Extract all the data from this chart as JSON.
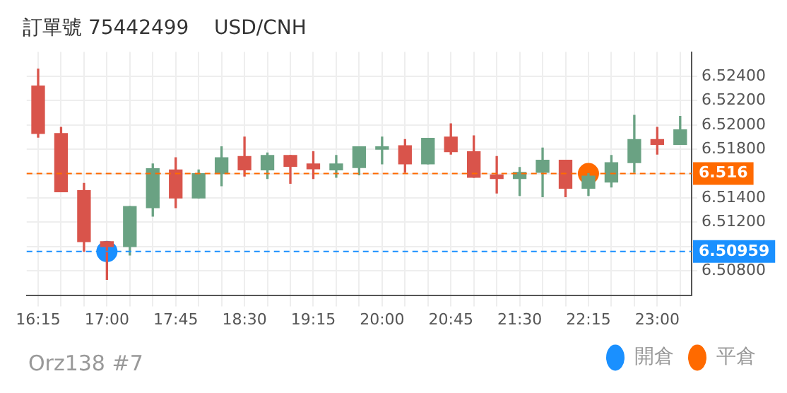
{
  "chart_data": {
    "type": "candlestick",
    "title": "訂單號 75442499    USD/CNH",
    "categories": [
      "16:15",
      null,
      null,
      "17:00",
      null,
      null,
      "17:45",
      null,
      null,
      "18:30",
      null,
      null,
      "19:15",
      null,
      null,
      "20:00",
      null,
      null,
      "20:45",
      null,
      null,
      "21:30",
      null,
      null,
      "22:15",
      null,
      null,
      "23:00",
      null
    ],
    "ohlc": [
      [
        6.5232,
        6.5246,
        6.519,
        6.5193
      ],
      [
        6.5193,
        6.5198,
        6.5145,
        6.5145
      ],
      [
        6.5146,
        6.5152,
        6.5096,
        6.5104
      ],
      [
        6.5104,
        6.5104,
        6.5073,
        6.51
      ],
      [
        6.51,
        6.5133,
        6.5093,
        6.5133
      ],
      [
        6.5132,
        6.5168,
        6.5125,
        6.5164
      ],
      [
        6.5163,
        6.5173,
        6.5132,
        6.514
      ],
      [
        6.514,
        6.5163,
        6.514,
        6.516
      ],
      [
        6.516,
        6.5182,
        6.515,
        6.5173
      ],
      [
        6.5174,
        6.519,
        6.5158,
        6.5163
      ],
      [
        6.5163,
        6.5177,
        6.5156,
        6.5175
      ],
      [
        6.5175,
        6.5175,
        6.5152,
        6.5166
      ],
      [
        6.5168,
        6.5178,
        6.5156,
        6.5164
      ],
      [
        6.5163,
        6.5175,
        6.5157,
        6.5168
      ],
      [
        6.5165,
        6.5182,
        6.5159,
        6.5182
      ],
      [
        6.518,
        6.519,
        6.5168,
        6.5182
      ],
      [
        6.5183,
        6.5188,
        6.5161,
        6.5168
      ],
      [
        6.5168,
        6.5189,
        6.5168,
        6.5189
      ],
      [
        6.519,
        6.5201,
        6.5176,
        6.5178
      ],
      [
        6.5178,
        6.5191,
        6.5157,
        6.5157
      ],
      [
        6.5159,
        6.5174,
        6.5144,
        6.5156
      ],
      [
        6.5156,
        6.5165,
        6.5142,
        6.5161
      ],
      [
        6.5161,
        6.5181,
        6.5141,
        6.5171
      ],
      [
        6.5171,
        6.5171,
        6.5141,
        6.5148
      ],
      [
        6.5148,
        6.516,
        6.5142,
        6.5158
      ],
      [
        6.5153,
        6.5175,
        6.5149,
        6.5169
      ],
      [
        6.5169,
        6.5208,
        6.5161,
        6.5188
      ],
      [
        6.5188,
        6.5198,
        6.5176,
        6.5184
      ],
      [
        6.5184,
        6.5207,
        6.5184,
        6.5196
      ]
    ],
    "colors": [
      "#d9544b",
      "#d9544b",
      "#d9544b",
      "#d9544b",
      "#6aa283",
      "#6aa283",
      "#d9544b",
      "#6aa283",
      "#6aa283",
      "#d9544b",
      "#6aa283",
      "#d9544b",
      "#d9544b",
      "#6aa283",
      "#6aa283",
      "#6aa283",
      "#d9544b",
      "#6aa283",
      "#d9544b",
      "#d9544b",
      "#d9544b",
      "#6aa283",
      "#6aa283",
      "#d9544b",
      "#6aa283",
      "#6aa283",
      "#6aa283",
      "#d9544b",
      "#6aa283"
    ],
    "series": [
      {
        "type": "scatter",
        "name": "開倉",
        "color": "#1a90ff",
        "x": [
          "17:00"
        ],
        "values": [
          6.50959
        ]
      },
      {
        "type": "scatter",
        "name": "平倉",
        "color": "#ff6a00",
        "x": [
          "22:15"
        ],
        "values": [
          6.516
        ]
      }
    ],
    "marker": "circle",
    "ylim": [
      6.506,
      6.526
    ],
    "yticks": [
      {
        "value": 6.508,
        "label": "6.50800"
      },
      {
        "value": 6.51,
        "label": null
      },
      {
        "value": 6.512,
        "label": "6.51200"
      },
      {
        "value": 6.514,
        "label": "6.51400"
      },
      {
        "value": 6.516,
        "label": null
      },
      {
        "value": 6.518,
        "label": "6.51800"
      },
      {
        "value": 6.52,
        "label": "6.52000"
      },
      {
        "value": 6.522,
        "label": "6.52200"
      },
      {
        "value": 6.524,
        "label": "6.52400"
      }
    ],
    "ref_lines": [
      {
        "axis": "y",
        "value": 6.516,
        "label": "6.516",
        "color": "#ff6a00",
        "line_style": "dashed"
      },
      {
        "axis": "y",
        "value": 6.50959,
        "label": "6.50959",
        "color": "#1a90ff",
        "line_style": "dashed"
      }
    ],
    "grid": true,
    "legend": "bottom right",
    "annotations": [
      "Orz138 #7"
    ]
  }
}
